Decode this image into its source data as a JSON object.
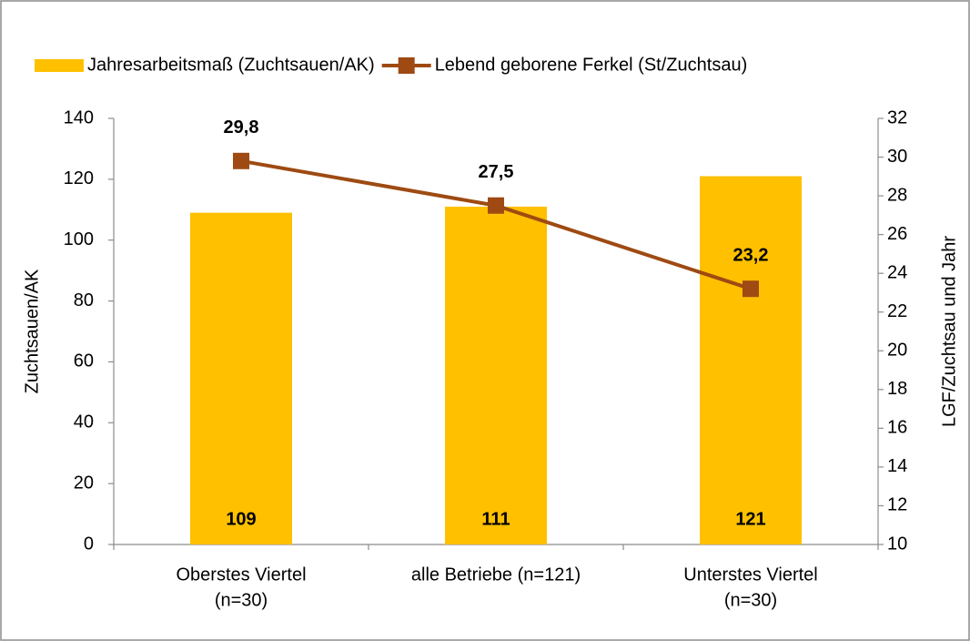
{
  "chart_data": {
    "type": "combo",
    "categories": [
      [
        "Oberstes Viertel",
        "(n=30)"
      ],
      [
        "alle Betriebe (n=121)"
      ],
      [
        "Unterstes Viertel",
        "(n=30)"
      ]
    ],
    "series": [
      {
        "name": "Jahresarbeitsmaß (Zuchtsauen/AK)",
        "type": "bar",
        "color": "#ffc000",
        "values": [
          109,
          111,
          121
        ]
      },
      {
        "name": "Lebend geborene Ferkel (St/Zuchtsau)",
        "type": "line",
        "axis": "y2",
        "color": "#9e4a12",
        "values": [
          29.8,
          27.5,
          23.2
        ],
        "value_labels": [
          "29,8",
          "27,5",
          "23,2"
        ]
      }
    ],
    "ylabel": "Zuchtsauen/AK",
    "y2label": "LGF/Zuchtsau und Jahr",
    "ylim": [
      0,
      140
    ],
    "yticks": [
      0,
      20,
      40,
      60,
      80,
      100,
      120,
      140
    ],
    "y2lim": [
      10,
      32
    ],
    "y2ticks": [
      10,
      12,
      14,
      16,
      18,
      20,
      22,
      24,
      26,
      28,
      30,
      32
    ],
    "legend": "top"
  }
}
